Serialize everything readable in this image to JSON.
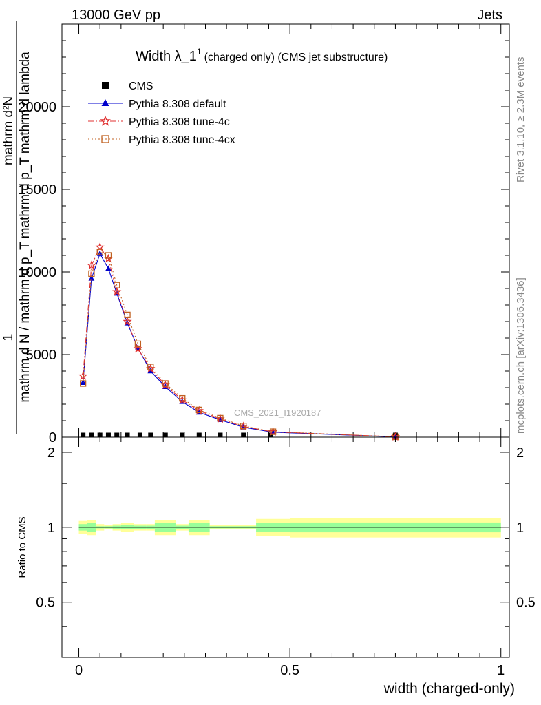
{
  "header": {
    "left_label": "13000 GeV pp",
    "right_label": "Jets"
  },
  "side_labels": {
    "rivet": "Rivet 3.1.10, ≥ 2.3M events",
    "mcplots": "mcplots.cern.ch [arXiv:1306.3436]"
  },
  "chart_data": [
    {
      "type": "line",
      "title_main": "Width λ_1",
      "title_sup": "1",
      "title_rest": "(charged only) (CMS jet substructure)",
      "watermark": "CMS_2021_I1920187",
      "ylabel_numerator": "1",
      "ylabel_denominator": "mathrm d N / mathrm d p_T mathrm d p_T mathrm d lambda",
      "ylabel_top": "mathrm d²N",
      "xlim": [
        -0.04,
        1.02
      ],
      "ylim": [
        0,
        25000
      ],
      "yticks": [
        0,
        5000,
        10000,
        15000,
        20000
      ],
      "ytick_labels": [
        "0",
        "5000",
        "10000",
        "15000",
        "20000"
      ],
      "legend_position": "top-left",
      "series": [
        {
          "name": "CMS",
          "color": "#000000",
          "marker": "square",
          "x": [
            0.01,
            0.03,
            0.05,
            0.07,
            0.09,
            0.115,
            0.145,
            0.17,
            0.205,
            0.245,
            0.285,
            0.335,
            0.39,
            0.455,
            0.75
          ],
          "y": [
            40,
            40,
            40,
            40,
            40,
            40,
            40,
            40,
            40,
            40,
            40,
            40,
            40,
            40,
            20
          ]
        },
        {
          "name": "Pythia 8.308 default",
          "color": "#0000cc",
          "marker": "triangle",
          "dash": "",
          "x": [
            0.01,
            0.03,
            0.05,
            0.07,
            0.09,
            0.115,
            0.14,
            0.17,
            0.205,
            0.245,
            0.285,
            0.335,
            0.39,
            0.46,
            0.75
          ],
          "y": [
            3300,
            9600,
            11100,
            10200,
            8700,
            6900,
            5400,
            4000,
            3050,
            2150,
            1500,
            1050,
            600,
            300,
            20
          ]
        },
        {
          "name": "Pythia 8.308 tune-4c",
          "color": "#e03030",
          "marker": "star",
          "dash": "8,3,2,3",
          "x": [
            0.01,
            0.03,
            0.05,
            0.07,
            0.09,
            0.115,
            0.14,
            0.17,
            0.205,
            0.245,
            0.285,
            0.335,
            0.39,
            0.46,
            0.75
          ],
          "y": [
            3700,
            10400,
            11500,
            10800,
            8800,
            7000,
            5350,
            4150,
            3150,
            2250,
            1600,
            1100,
            650,
            320,
            25
          ]
        },
        {
          "name": "Pythia 8.308 tune-4cx",
          "color": "#c06020",
          "marker": "open-square",
          "dash": "2,3",
          "x": [
            0.01,
            0.03,
            0.05,
            0.07,
            0.09,
            0.115,
            0.14,
            0.17,
            0.205,
            0.245,
            0.285,
            0.335,
            0.39,
            0.46,
            0.75
          ],
          "y": [
            3250,
            9900,
            11200,
            11000,
            9200,
            7400,
            5650,
            4250,
            3250,
            2350,
            1650,
            1150,
            680,
            330,
            25
          ]
        }
      ]
    },
    {
      "type": "area",
      "ylabel": "Ratio to CMS",
      "xlabel": "width (charged-only)",
      "xlim": [
        -0.04,
        1.02
      ],
      "ylim": [
        0.3,
        2.3
      ],
      "yticks": [
        0.5,
        1,
        2
      ],
      "ytick_labels": [
        "0.5",
        "1",
        "2"
      ],
      "xticks": [
        0,
        0.5,
        1
      ],
      "xtick_labels": [
        "0",
        "0.5",
        "1"
      ],
      "bands": {
        "edges": [
          0,
          0.02,
          0.04,
          0.06,
          0.08,
          0.1,
          0.13,
          0.16,
          0.18,
          0.23,
          0.26,
          0.31,
          0.36,
          0.42,
          0.5,
          1.0
        ],
        "yellow_low": [
          0.94,
          0.93,
          0.97,
          0.98,
          0.97,
          0.96,
          0.97,
          0.97,
          0.93,
          0.97,
          0.93,
          0.98,
          0.98,
          0.92,
          0.91
        ],
        "yellow_high": [
          1.06,
          1.07,
          1.03,
          1.02,
          1.03,
          1.04,
          1.03,
          1.03,
          1.07,
          1.03,
          1.07,
          1.02,
          1.02,
          1.08,
          1.09
        ],
        "green_low": [
          0.97,
          0.96,
          0.99,
          0.99,
          0.985,
          0.98,
          0.985,
          0.985,
          0.96,
          0.985,
          0.96,
          0.99,
          0.99,
          0.96,
          0.955
        ],
        "green_high": [
          1.03,
          1.04,
          1.01,
          1.01,
          1.015,
          1.02,
          1.015,
          1.015,
          1.04,
          1.015,
          1.04,
          1.01,
          1.01,
          1.04,
          1.045
        ]
      },
      "band_colors": {
        "yellow": "#ffff99",
        "green": "#99ff99"
      }
    }
  ]
}
